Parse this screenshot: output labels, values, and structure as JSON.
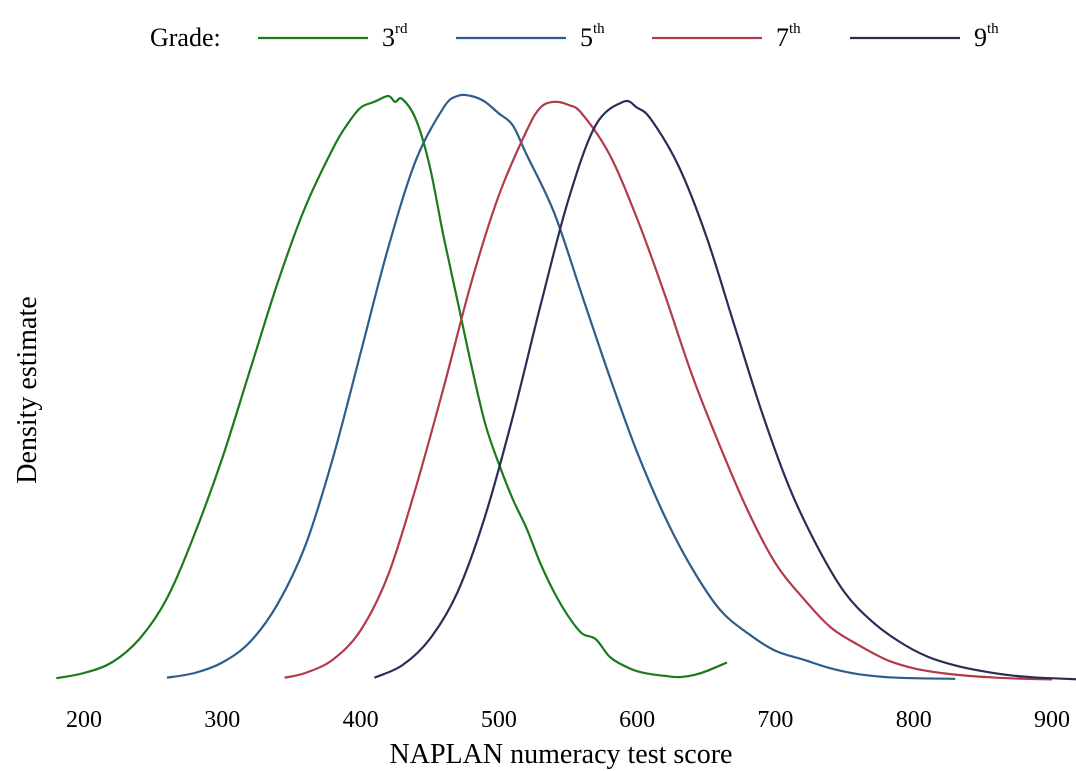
{
  "chart_data": {
    "type": "line",
    "xlabel": "NAPLAN numeracy test score",
    "ylabel": "Density estimate",
    "xlim": [
      180,
      920
    ],
    "ylim": [
      0,
      1.0
    ],
    "x_ticks": [
      200,
      300,
      400,
      500,
      600,
      700,
      800,
      900
    ],
    "x_tick_labels": [
      "200",
      "300",
      "400",
      "500",
      "600",
      "700",
      "800",
      "900"
    ],
    "grid": false,
    "legend": {
      "title": "Grade:",
      "placement": "top",
      "entries": [
        {
          "base": "3",
          "suffix": "rd"
        },
        {
          "base": "5",
          "suffix": "th"
        },
        {
          "base": "7",
          "suffix": "th"
        },
        {
          "base": "9",
          "suffix": "th"
        }
      ]
    },
    "series": [
      {
        "color": "#1b7a1b",
        "x": [
          180,
          200,
          220,
          240,
          260,
          280,
          300,
          320,
          340,
          360,
          380,
          390,
          400,
          410,
          420,
          425,
          430,
          440,
          450,
          460,
          470,
          480,
          490,
          500,
          510,
          520,
          530,
          540,
          550,
          560,
          570,
          580,
          590,
          600,
          610,
          620,
          630,
          640,
          650,
          665
        ],
        "y": [
          0.003,
          0.012,
          0.03,
          0.07,
          0.14,
          0.25,
          0.38,
          0.53,
          0.68,
          0.81,
          0.91,
          0.95,
          0.98,
          0.99,
          1.0,
          0.99,
          0.995,
          0.96,
          0.88,
          0.76,
          0.65,
          0.54,
          0.44,
          0.37,
          0.31,
          0.26,
          0.2,
          0.15,
          0.11,
          0.08,
          0.07,
          0.04,
          0.025,
          0.015,
          0.01,
          0.007,
          0.005,
          0.008,
          0.015,
          0.03
        ]
      },
      {
        "color": "#2e5d8a",
        "x": [
          260,
          280,
          300,
          320,
          340,
          360,
          380,
          400,
          420,
          440,
          460,
          470,
          480,
          490,
          500,
          510,
          520,
          540,
          560,
          580,
          600,
          620,
          640,
          660,
          680,
          700,
          720,
          740,
          760,
          780,
          800,
          830
        ],
        "y": [
          0.004,
          0.012,
          0.03,
          0.065,
          0.13,
          0.23,
          0.38,
          0.56,
          0.74,
          0.89,
          0.98,
          1.0,
          1.0,
          0.99,
          0.97,
          0.95,
          0.9,
          0.8,
          0.66,
          0.52,
          0.39,
          0.28,
          0.19,
          0.12,
          0.08,
          0.05,
          0.035,
          0.02,
          0.01,
          0.005,
          0.003,
          0.002
        ]
      },
      {
        "color": "#b13b4a",
        "x": [
          345,
          360,
          380,
          400,
          420,
          440,
          460,
          480,
          500,
          520,
          530,
          540,
          550,
          560,
          580,
          600,
          620,
          640,
          660,
          680,
          700,
          720,
          740,
          760,
          780,
          800,
          820,
          840,
          860,
          880,
          900
        ],
        "y": [
          0.004,
          0.012,
          0.035,
          0.085,
          0.18,
          0.33,
          0.5,
          0.68,
          0.83,
          0.94,
          0.98,
          0.99,
          0.985,
          0.97,
          0.9,
          0.79,
          0.66,
          0.52,
          0.4,
          0.29,
          0.2,
          0.14,
          0.09,
          0.06,
          0.035,
          0.02,
          0.012,
          0.007,
          0.004,
          0.002,
          0.001
        ]
      },
      {
        "color": "#2b2d57",
        "x": [
          410,
          430,
          450,
          470,
          490,
          510,
          530,
          550,
          570,
          590,
          600,
          610,
          630,
          650,
          670,
          690,
          710,
          730,
          750,
          770,
          790,
          810,
          830,
          850,
          870,
          890,
          910,
          920
        ],
        "y": [
          0.004,
          0.025,
          0.07,
          0.15,
          0.28,
          0.45,
          0.64,
          0.82,
          0.95,
          0.99,
          0.98,
          0.96,
          0.88,
          0.76,
          0.61,
          0.46,
          0.33,
          0.23,
          0.15,
          0.1,
          0.065,
          0.04,
          0.025,
          0.015,
          0.008,
          0.004,
          0.002,
          0.001
        ]
      }
    ]
  }
}
